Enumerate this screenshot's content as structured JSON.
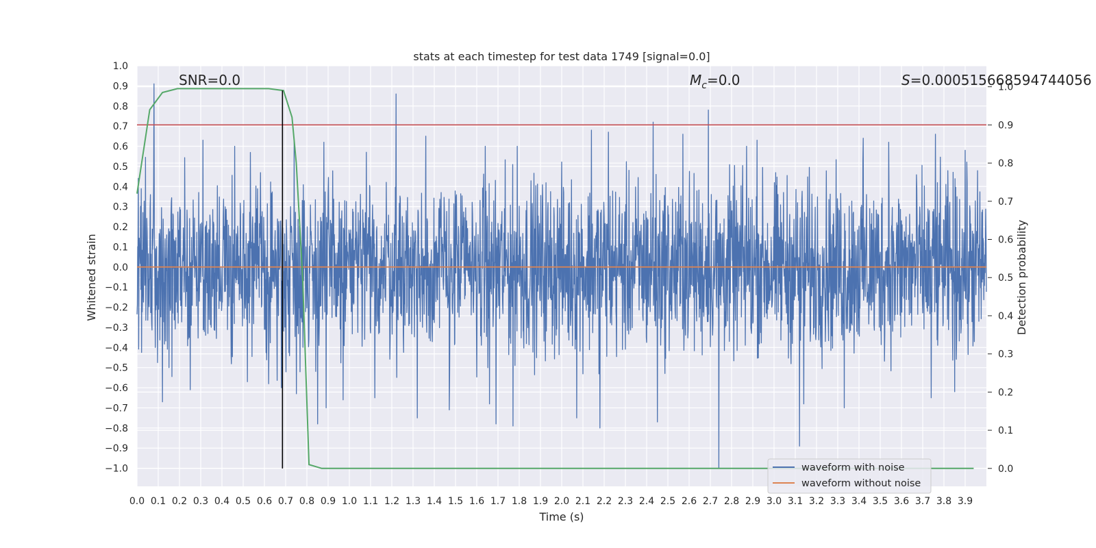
{
  "chart_data": {
    "type": "line",
    "title": "stats at each timestep for test data 1749 [signal=0.0]",
    "xlabel": "Time (s)",
    "ylabel": "Whitened strain",
    "ylabel_right": "Detection probability",
    "xlim": [
      0.0,
      4.0
    ],
    "ylim": [
      -1.09,
      1.0
    ],
    "ylim_right": [
      -0.047,
      1.055
    ],
    "grid": true,
    "legend_position": "lower-right",
    "x_ticks": [
      "0.0",
      "0.1",
      "0.2",
      "0.3",
      "0.4",
      "0.5",
      "0.6",
      "0.7",
      "0.8",
      "0.9",
      "1.0",
      "1.1",
      "1.2",
      "1.3",
      "1.4",
      "1.5",
      "1.6",
      "1.7",
      "1.8",
      "1.9",
      "2.0",
      "2.1",
      "2.2",
      "2.3",
      "2.4",
      "2.5",
      "2.6",
      "2.7",
      "2.8",
      "2.9",
      "3.0",
      "3.1",
      "3.2",
      "3.3",
      "3.4",
      "3.5",
      "3.6",
      "3.7",
      "3.8",
      "3.9"
    ],
    "y_ticks": [
      "1.0",
      "0.9",
      "0.8",
      "0.7",
      "0.6",
      "0.5",
      "0.4",
      "0.3",
      "0.2",
      "0.1",
      "0.0",
      "−0.1",
      "−0.2",
      "−0.3",
      "−0.4",
      "−0.5",
      "−0.6",
      "−0.7",
      "−0.8",
      "−0.9",
      "−1.0"
    ],
    "y_ticks_right": [
      "1.0",
      "0.9",
      "0.8",
      "0.7",
      "0.6",
      "0.5",
      "0.4",
      "0.3",
      "0.2",
      "0.1",
      "0.0"
    ],
    "annotations": {
      "snr": "SNR=0.0",
      "mc": "=0.0",
      "mc_symbol": "M",
      "mc_sub": "c",
      "s": "=0.000515668594744056",
      "s_symbol": "S"
    },
    "threshold_line": {
      "y_right": 0.9,
      "color": "#c44e52"
    },
    "marker_line": {
      "x": 0.685,
      "color": "#000000"
    },
    "series": [
      {
        "name": "waveform with noise",
        "color": "#4c72b0",
        "spikes": [
          [
            0.08,
            0.91
          ],
          [
            0.12,
            -0.67
          ],
          [
            0.15,
            -0.5
          ],
          [
            0.25,
            -0.61
          ],
          [
            0.31,
            0.63
          ],
          [
            0.45,
            -0.12
          ],
          [
            0.46,
            0.6
          ],
          [
            0.52,
            -0.57
          ],
          [
            0.62,
            -0.58
          ],
          [
            0.68,
            -0.6
          ],
          [
            0.74,
            0.63
          ],
          [
            0.75,
            -0.63
          ],
          [
            0.85,
            -0.78
          ],
          [
            0.88,
            0.62
          ],
          [
            0.89,
            -0.7
          ],
          [
            0.97,
            -0.66
          ],
          [
            1.08,
            0.57
          ],
          [
            1.12,
            -0.65
          ],
          [
            1.22,
            0.86
          ],
          [
            1.32,
            -0.75
          ],
          [
            1.36,
            0.65
          ],
          [
            1.47,
            -0.71
          ],
          [
            1.64,
            0.6
          ],
          [
            1.66,
            -0.68
          ],
          [
            1.69,
            -0.78
          ],
          [
            1.77,
            -0.79
          ],
          [
            1.79,
            0.6
          ],
          [
            2.07,
            -0.75
          ],
          [
            2.14,
            0.68
          ],
          [
            2.18,
            -0.8
          ],
          [
            2.22,
            0.67
          ],
          [
            2.43,
            0.72
          ],
          [
            2.45,
            -0.77
          ],
          [
            2.57,
            0.66
          ],
          [
            2.69,
            0.78
          ],
          [
            2.74,
            -1.0
          ],
          [
            2.87,
            0.6
          ],
          [
            2.92,
            0.63
          ],
          [
            3.12,
            -0.89
          ],
          [
            3.14,
            -0.68
          ],
          [
            3.33,
            -0.7
          ],
          [
            3.42,
            0.64
          ],
          [
            3.54,
            0.62
          ],
          [
            3.74,
            -0.65
          ],
          [
            3.76,
            0.66
          ],
          [
            3.85,
            -0.62
          ],
          [
            3.9,
            0.58
          ]
        ]
      },
      {
        "name": "waveform without noise",
        "color": "#dd8452",
        "values": [
          [
            0.0,
            0.0
          ],
          [
            4.0,
            0.0
          ]
        ]
      },
      {
        "name": "",
        "color": "#55a868",
        "axis": "right",
        "x": [
          0.0,
          0.06,
          0.12,
          0.19,
          0.25,
          0.31,
          0.37,
          0.44,
          0.5,
          0.56,
          0.62,
          0.69,
          0.73,
          0.75,
          0.78,
          0.81,
          0.87,
          0.94,
          1.0,
          1.5,
          2.0,
          2.5,
          3.0,
          3.5,
          3.94
        ],
        "y": [
          0.72,
          0.94,
          0.985,
          0.995,
          0.995,
          0.995,
          0.995,
          0.995,
          0.995,
          0.995,
          0.995,
          0.99,
          0.92,
          0.8,
          0.5,
          0.01,
          0.0,
          0.0,
          0.0,
          0.0,
          0.0,
          0.0,
          0.0,
          0.0,
          0.0
        ]
      }
    ]
  }
}
